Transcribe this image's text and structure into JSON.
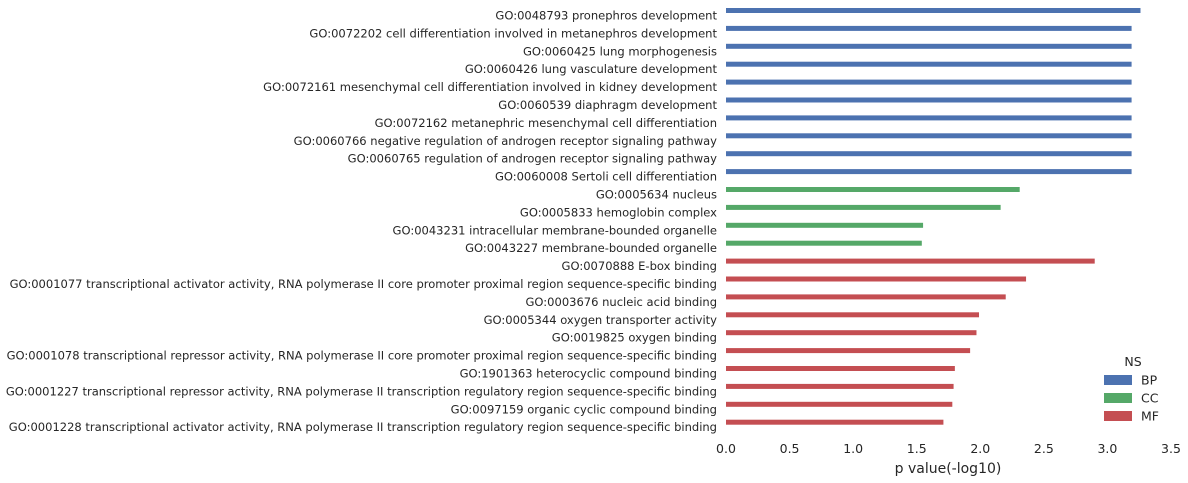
{
  "chart_data": {
    "type": "bar",
    "orientation": "horizontal",
    "title": "",
    "xlabel": "p value(-log10)",
    "ylabel": "",
    "xlim": [
      0,
      3.5
    ],
    "xticks": [
      0.0,
      0.5,
      1.0,
      1.5,
      2.0,
      2.5,
      3.0,
      3.5
    ],
    "xtick_labels": [
      "0.0",
      "0.5",
      "1.0",
      "1.5",
      "2.0",
      "2.5",
      "3.0",
      "3.5"
    ],
    "grid": false,
    "legend": {
      "title": "NS",
      "placement": "lower-right",
      "entries": [
        {
          "name": "BP",
          "color": "#4c72b0"
        },
        {
          "name": "CC",
          "color": "#55a868"
        },
        {
          "name": "MF",
          "color": "#c44e52"
        }
      ]
    },
    "bars": [
      {
        "label": "GO:0048793 pronephros development",
        "ns": "BP",
        "value": 3.26
      },
      {
        "label": "GO:0072202 cell differentiation involved in metanephros development",
        "ns": "BP",
        "value": 3.19
      },
      {
        "label": "GO:0060425 lung morphogenesis",
        "ns": "BP",
        "value": 3.19
      },
      {
        "label": "GO:0060426 lung vasculature development",
        "ns": "BP",
        "value": 3.19
      },
      {
        "label": "GO:0072161 mesenchymal cell differentiation involved in kidney development",
        "ns": "BP",
        "value": 3.19
      },
      {
        "label": "GO:0060539 diaphragm development",
        "ns": "BP",
        "value": 3.19
      },
      {
        "label": "GO:0072162 metanephric mesenchymal cell differentiation",
        "ns": "BP",
        "value": 3.19
      },
      {
        "label": "GO:0060766 negative regulation of androgen receptor signaling pathway",
        "ns": "BP",
        "value": 3.19
      },
      {
        "label": "GO:0060765 regulation of androgen receptor signaling pathway",
        "ns": "BP",
        "value": 3.19
      },
      {
        "label": "GO:0060008 Sertoli cell differentiation",
        "ns": "BP",
        "value": 3.19
      },
      {
        "label": "GO:0005634 nucleus",
        "ns": "CC",
        "value": 2.31
      },
      {
        "label": "GO:0005833 hemoglobin complex",
        "ns": "CC",
        "value": 2.16
      },
      {
        "label": "GO:0043231 intracellular membrane-bounded organelle",
        "ns": "CC",
        "value": 1.55
      },
      {
        "label": "GO:0043227 membrane-bounded organelle",
        "ns": "CC",
        "value": 1.54
      },
      {
        "label": "GO:0070888 E-box binding",
        "ns": "MF",
        "value": 2.9
      },
      {
        "label": "GO:0001077 transcriptional activator activity, RNA polymerase II core promoter proximal region sequence-specific binding",
        "ns": "MF",
        "value": 2.36
      },
      {
        "label": "GO:0003676 nucleic acid binding",
        "ns": "MF",
        "value": 2.2
      },
      {
        "label": "GO:0005344 oxygen transporter activity",
        "ns": "MF",
        "value": 1.99
      },
      {
        "label": "GO:0019825 oxygen binding",
        "ns": "MF",
        "value": 1.97
      },
      {
        "label": "GO:0001078 transcriptional repressor activity, RNA polymerase II core promoter proximal region sequence-specific binding",
        "ns": "MF",
        "value": 1.92
      },
      {
        "label": "GO:1901363 heterocyclic compound binding",
        "ns": "MF",
        "value": 1.8
      },
      {
        "label": "GO:0001227 transcriptional repressor activity, RNA polymerase II transcription regulatory region sequence-specific binding",
        "ns": "MF",
        "value": 1.79
      },
      {
        "label": "GO:0097159 organic cyclic compound binding",
        "ns": "MF",
        "value": 1.78
      },
      {
        "label": "GO:0001228 transcriptional activator activity, RNA polymerase II transcription regulatory region sequence-specific binding",
        "ns": "MF",
        "value": 1.71
      }
    ]
  }
}
